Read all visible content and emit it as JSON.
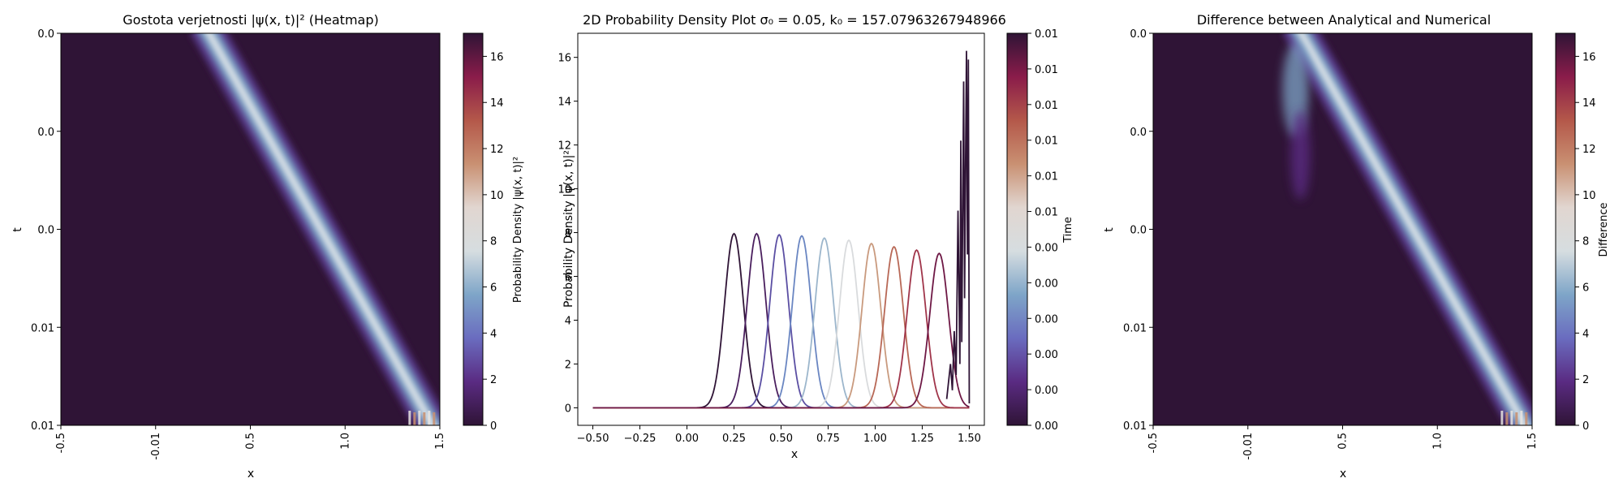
{
  "colors": {
    "colormap": [
      "#2f1436",
      "#5a2b82",
      "#6a6cbf",
      "#7ea5c8",
      "#d6dde0",
      "#e1d6d0",
      "#c99072",
      "#b4584a",
      "#8a1c4a",
      "#2f1436"
    ],
    "axes": "#000000"
  },
  "chart_data": [
    {
      "type": "heatmap",
      "title": "Gostota verjetnosti |ψ(x, t)|² (Heatmap)",
      "xlabel": "x",
      "ylabel": "t",
      "xticklabels": [
        "-0.5",
        "-0.01",
        "0.5",
        "1.0",
        "1.5"
      ],
      "yticklabels": [
        "0.0",
        "0.0",
        "0.0",
        "0.01",
        "0.01"
      ],
      "x_range": [
        -0.5,
        1.5
      ],
      "colorbar": {
        "label": "Probability Density |ψ(x, t)|²",
        "range": [
          0,
          17
        ],
        "ticks": [
          "0",
          "2",
          "4",
          "6",
          "8",
          "10",
          "12",
          "14",
          "16"
        ]
      },
      "features": [
        {
          "name": "packet",
          "x_start": 0.3,
          "x_end": 1.48,
          "peak": 9
        }
      ]
    },
    {
      "type": "line",
      "title": "2D Probability Density Plot σ₀ = 0.05, k₀ = 157.07963267948966",
      "xlabel": "x",
      "ylabel": "Probability Density |ψ(x, t)|²",
      "xlim": [
        -0.58,
        1.58
      ],
      "ylim": [
        -0.8,
        17.1
      ],
      "xticks": [
        -0.5,
        -0.25,
        0.0,
        0.25,
        0.5,
        0.75,
        1.0,
        1.25,
        1.5
      ],
      "xticklabels": [
        "−0.50",
        "−0.25",
        "0.00",
        "0.25",
        "0.50",
        "0.75",
        "1.00",
        "1.25",
        "1.50"
      ],
      "yticks": [
        0,
        2,
        4,
        6,
        8,
        10,
        12,
        14,
        16
      ],
      "yticklabels": [
        "0",
        "2",
        "4",
        "6",
        "8",
        "10",
        "12",
        "14",
        "16"
      ],
      "colorbar": {
        "label": "Time",
        "ticks": [
          "0.00",
          "0.00",
          "0.00",
          "0.00",
          "0.00",
          "0.00",
          "0.01",
          "0.01",
          "0.01",
          "0.01",
          "0.01",
          "0.01"
        ]
      },
      "gaussians": [
        {
          "center": 0.25,
          "peak": 7.95,
          "color": "#2f1436"
        },
        {
          "center": 0.37,
          "peak": 7.95,
          "color": "#4a1f5e"
        },
        {
          "center": 0.49,
          "peak": 7.9,
          "color": "#5b4fa3"
        },
        {
          "center": 0.61,
          "peak": 7.85,
          "color": "#6a86c2"
        },
        {
          "center": 0.73,
          "peak": 7.75,
          "color": "#9cb6cc"
        },
        {
          "center": 0.86,
          "peak": 7.65,
          "color": "#d9dbdd"
        },
        {
          "center": 0.98,
          "peak": 7.5,
          "color": "#c99a7e"
        },
        {
          "center": 1.1,
          "peak": 7.35,
          "color": "#b86856"
        },
        {
          "center": 1.22,
          "peak": 7.2,
          "color": "#a0354a"
        },
        {
          "center": 1.34,
          "peak": 7.05,
          "color": "#6e1845"
        }
      ],
      "edge_trace": {
        "color": "#2f1436",
        "points": [
          [
            1.38,
            0.4
          ],
          [
            1.4,
            2.0
          ],
          [
            1.41,
            0.8
          ],
          [
            1.42,
            3.5
          ],
          [
            1.43,
            1.5
          ],
          [
            1.44,
            9.0
          ],
          [
            1.45,
            2.0
          ],
          [
            1.455,
            12.2
          ],
          [
            1.46,
            3.0
          ],
          [
            1.47,
            14.9
          ],
          [
            1.475,
            5.0
          ],
          [
            1.48,
            11.0
          ],
          [
            1.485,
            16.3
          ],
          [
            1.49,
            7.0
          ],
          [
            1.495,
            15.9
          ],
          [
            1.5,
            0.2
          ]
        ]
      }
    },
    {
      "type": "heatmap",
      "title": "Difference between Analytical and Numerical",
      "xlabel": "x",
      "ylabel": "t",
      "xticklabels": [
        "-0.5",
        "-0.01",
        "0.5",
        "1.0",
        "1.5"
      ],
      "yticklabels": [
        "0.0",
        "0.0",
        "0.0",
        "0.01",
        "0.01"
      ],
      "x_range": [
        -0.5,
        1.5
      ],
      "colorbar": {
        "label": "Difference",
        "range": [
          0,
          17
        ],
        "ticks": [
          "0",
          "2",
          "4",
          "6",
          "8",
          "10",
          "12",
          "14",
          "16"
        ]
      },
      "features": [
        {
          "name": "packet",
          "x_start": 0.3,
          "x_end": 1.48,
          "peak": 9
        },
        {
          "name": "ghost",
          "x_start": 0.2,
          "peak": 5
        }
      ]
    }
  ]
}
